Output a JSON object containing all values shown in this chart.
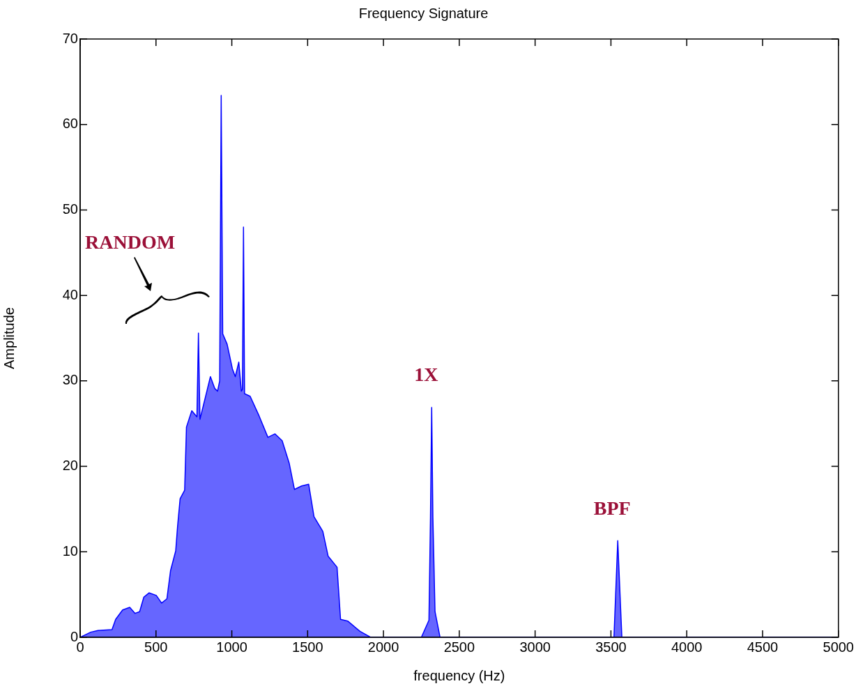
{
  "chart_data": {
    "type": "area",
    "title": "Frequency Signature",
    "xlabel": "frequency (Hz)",
    "ylabel": "Amplitude",
    "x": [
      0,
      70,
      117,
      210,
      234,
      280,
      327,
      362,
      392,
      420,
      455,
      502,
      537,
      572,
      596,
      630,
      642,
      659,
      689,
      701,
      736,
      770,
      780,
      790,
      859,
      888,
      906,
      920,
      930,
      940,
      969,
      1004,
      1023,
      1046,
      1063,
      1070,
      1077,
      1084,
      1121,
      1180,
      1238,
      1285,
      1332,
      1378,
      1413,
      1460,
      1507,
      1542,
      1600,
      1635,
      1694,
      1717,
      1764,
      1845,
      1915,
      2000,
      2250,
      2270,
      2300,
      2310,
      2318,
      2326,
      2340,
      2373,
      3520,
      3545,
      3572,
      5000
    ],
    "series": [
      {
        "color": "#0000ff",
        "values": [
          0,
          0.6,
          0.8,
          0.9,
          2.1,
          3.2,
          3.5,
          2.8,
          3.0,
          4.7,
          5.2,
          4.9,
          4.0,
          4.5,
          7.8,
          10.1,
          12.9,
          16.2,
          17.2,
          24.6,
          26.5,
          25.8,
          35.6,
          25.5,
          30.5,
          29.1,
          28.8,
          30,
          63.4,
          35.5,
          34.3,
          31.4,
          30.5,
          32.2,
          28.8,
          29,
          48.0,
          28.5,
          28.2,
          25.9,
          23.4,
          23.8,
          23.0,
          20.4,
          17.3,
          17.7,
          17.9,
          14.1,
          12.4,
          9.5,
          8.2,
          2.1,
          1.9,
          0.7,
          0,
          0,
          0,
          0.8,
          2,
          14,
          26.9,
          14,
          3,
          0,
          0,
          11.3,
          0,
          0
        ]
      }
    ],
    "xlim": [
      0,
      5000
    ],
    "xticks": [
      0,
      500,
      1000,
      1500,
      2000,
      2500,
      3000,
      3500,
      4000,
      4500,
      5000
    ],
    "ylim": [
      0,
      70
    ],
    "yticks": [
      0,
      10,
      20,
      30,
      40,
      50,
      60,
      70
    ],
    "grid": false,
    "legend": false,
    "annotations": [
      "RANDOM",
      {
        "text": "1X",
        "x": 2318,
        "y": 26.9
      },
      {
        "text": "BPF",
        "x": 3545,
        "y": 11.3
      }
    ]
  }
}
